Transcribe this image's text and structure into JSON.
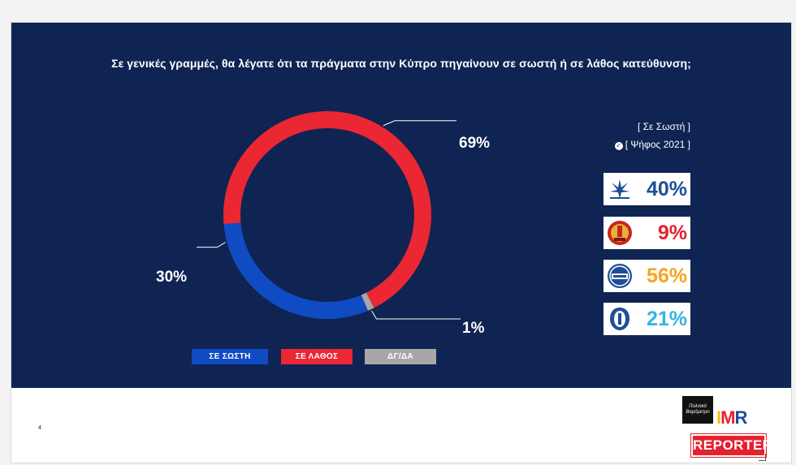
{
  "question": "Σε γενικές γραμμές, θα λέγατε ότι τα πράγματα στην Κύπρο πηγαίνουν σε σωστή ή σε λάθος κατεύθυνση;",
  "chart_data": {
    "type": "pie",
    "variant": "donut",
    "categories": [
      "ΣΕ ΣΩΣΤΗ",
      "ΣΕ ΛΑΘΟΣ",
      "ΔΓ/ΔΑ"
    ],
    "values": [
      30,
      69,
      1
    ],
    "value_labels": [
      "30%",
      "69%",
      "1%"
    ],
    "colors": [
      "#0f4cc4",
      "#ea2733",
      "#a7a7a7"
    ],
    "legend_position": "bottom"
  },
  "legend": [
    {
      "label": "ΣΕ ΣΩΣΤΗ",
      "color": "#0f4cc4"
    },
    {
      "label": "ΣΕ ΛΑΘΟΣ",
      "color": "#ea2733"
    },
    {
      "label": "ΔΓ/ΔΑ",
      "color": "#a7a7a7"
    }
  ],
  "sidebar": {
    "heading": "[ Σε Σωστή ]",
    "subheading": "[ Ψήφος 2021 ]",
    "parties": [
      {
        "logo": "disy-logo",
        "value": "40%",
        "color": "#1d4f97"
      },
      {
        "logo": "akel-logo",
        "value": "9%",
        "color": "#e5212d"
      },
      {
        "logo": "diko-logo",
        "value": "56%",
        "color": "#f4a51c"
      },
      {
        "logo": "elam-logo",
        "value": "21%",
        "color": "#37b4e0"
      }
    ]
  },
  "footer": {
    "page_number": "4",
    "brand_black_text": "Πολιτικό Βαρόμετρο",
    "brand_imr": "IMR",
    "brand_reporter": "REPORTER"
  },
  "colors": {
    "panel_bg": "#0f2453",
    "imr_i": "#f4c21c",
    "imr_m": "#e5212d",
    "imr_r": "#1d4f97"
  }
}
